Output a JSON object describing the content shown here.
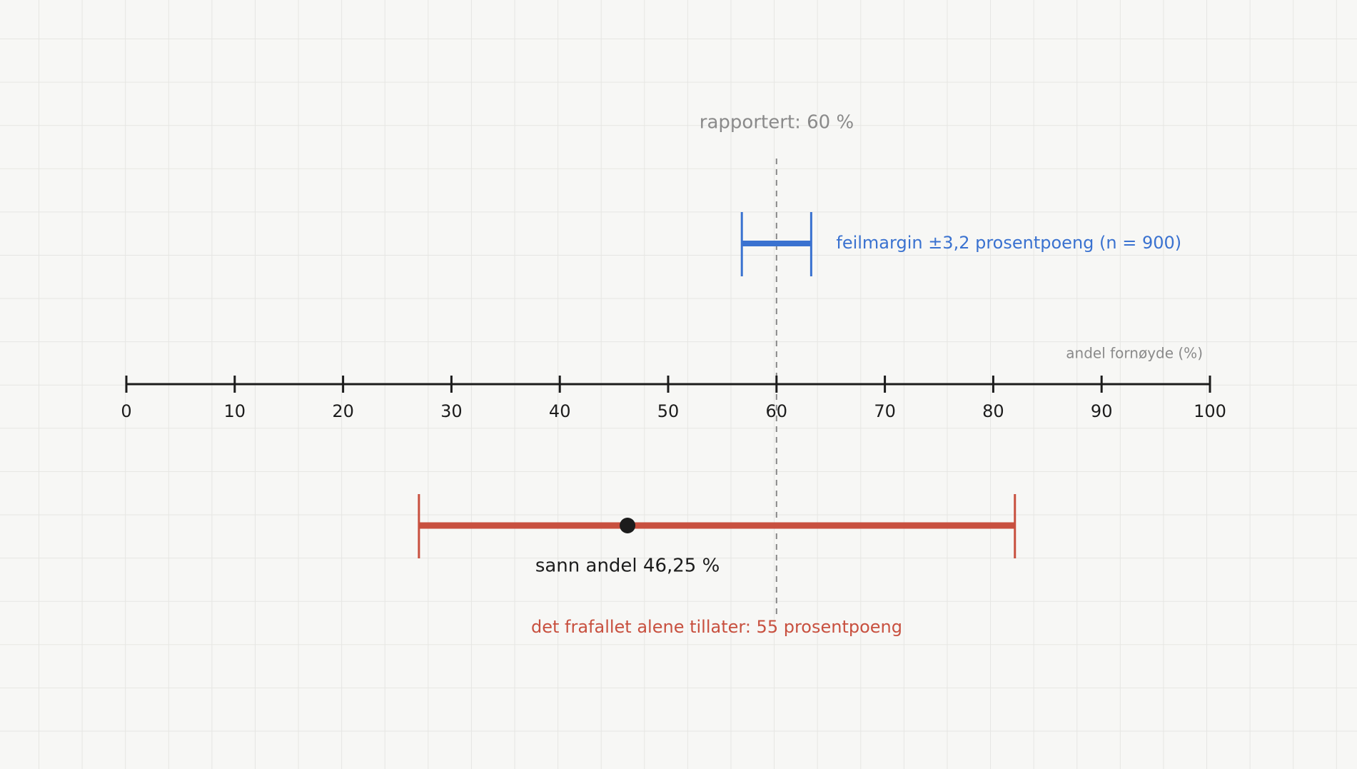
{
  "chart_data": {
    "type": "numberline",
    "xlabel": "andel fornøyde (%)",
    "xlim": [
      0,
      100
    ],
    "xticks": [
      0,
      10,
      20,
      30,
      40,
      50,
      60,
      70,
      80,
      90,
      100
    ],
    "reported": {
      "label": "rapportert: 60 %",
      "value": 60
    },
    "margin": {
      "label": "feilmargin ±3,2 prosentpoeng (n = 900)",
      "center": 60,
      "error": 3.2,
      "color": "#3a72d0"
    },
    "range": {
      "label": "det frafallet alene tillater: 55 prosentpoeng",
      "low": 27,
      "width": 55,
      "color": "#c8503f"
    },
    "point": {
      "label": "sann andel 46,25 %",
      "value": 46.25,
      "color": "#1c1c1c"
    }
  }
}
